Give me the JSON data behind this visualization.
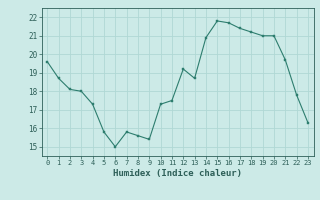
{
  "x": [
    0,
    1,
    2,
    3,
    4,
    5,
    6,
    7,
    8,
    9,
    10,
    11,
    12,
    13,
    14,
    15,
    16,
    17,
    18,
    19,
    20,
    21,
    22,
    23
  ],
  "y": [
    19.6,
    18.7,
    18.1,
    18.0,
    17.3,
    15.8,
    15.0,
    15.8,
    15.6,
    15.4,
    17.3,
    17.5,
    19.2,
    18.7,
    20.9,
    21.8,
    21.7,
    21.4,
    21.2,
    21.0,
    21.0,
    19.7,
    17.8,
    16.3
  ],
  "line_color": "#2d7d6e",
  "marker_color": "#2d7d6e",
  "bg_color": "#cceae7",
  "grid_color": "#b0d8d4",
  "axis_label_color": "#2d5f58",
  "tick_color": "#2d5f58",
  "xlabel": "Humidex (Indice chaleur)",
  "xlim": [
    -0.5,
    23.5
  ],
  "ylim": [
    14.5,
    22.5
  ],
  "yticks": [
    15,
    16,
    17,
    18,
    19,
    20,
    21,
    22
  ],
  "xticks": [
    0,
    1,
    2,
    3,
    4,
    5,
    6,
    7,
    8,
    9,
    10,
    11,
    12,
    13,
    14,
    15,
    16,
    17,
    18,
    19,
    20,
    21,
    22,
    23
  ]
}
